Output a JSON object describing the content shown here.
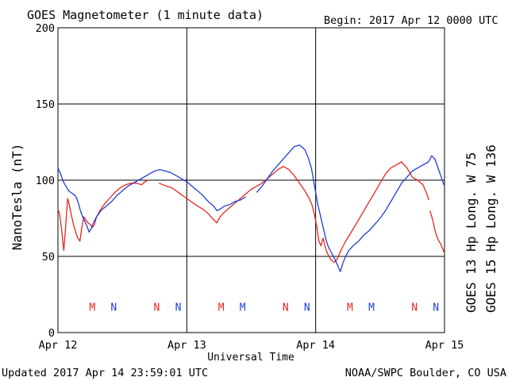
{
  "chart_data": {
    "type": "line",
    "title": "GOES Magnetometer (1 minute data)",
    "begin_label": "Begin:  2017 Apr 12 0000 UTC",
    "xlabel": "Universal Time",
    "ylabel": "NanoTesla (nT)",
    "ylim": [
      0,
      200
    ],
    "yticks": [
      0,
      50,
      100,
      150,
      200
    ],
    "xlim_hours": [
      0,
      72
    ],
    "xticks": [
      {
        "hour": 0,
        "label": "Apr 12"
      },
      {
        "hour": 24,
        "label": "Apr 13"
      },
      {
        "hour": 48,
        "label": "Apr 14"
      },
      {
        "hour": 72,
        "label": "Apr 15"
      }
    ],
    "grid": true,
    "footer_left": "Updated 2017 Apr 14 23:59:01 UTC",
    "footer_right": "NOAA/SWPC Boulder, CO USA",
    "series": [
      {
        "name": "GOES 13 Hp  Long. W 75",
        "color": "#e8251f",
        "segments": [
          [
            [
              0,
              81
            ],
            [
              0.3,
              78
            ],
            [
              0.6,
              70
            ],
            [
              0.9,
              60
            ],
            [
              1.1,
              54
            ],
            [
              1.4,
              68
            ],
            [
              1.8,
              88
            ],
            [
              2.1,
              84
            ],
            [
              2.5,
              77
            ],
            [
              2.9,
              71
            ],
            [
              3.3,
              66
            ],
            [
              3.7,
              62
            ],
            [
              4.1,
              60
            ],
            [
              4.4,
              68
            ],
            [
              4.8,
              76
            ],
            [
              5.2,
              74
            ],
            [
              5.6,
              72
            ],
            [
              6.0,
              71
            ],
            [
              6.4,
              69
            ],
            [
              6.8,
              71
            ],
            [
              7.2,
              76
            ],
            [
              7.8,
              80
            ],
            [
              8.6,
              84
            ],
            [
              9.6,
              88
            ],
            [
              10.6,
              92
            ],
            [
              11.6,
              95
            ],
            [
              12.6,
              97
            ],
            [
              13.6,
              98
            ],
            [
              14.6,
              98
            ],
            [
              15.6,
              97
            ],
            [
              16.2,
              99
            ],
            [
              16.8,
              100
            ]
          ],
          [
            [
              18.8,
              98
            ],
            [
              19.6,
              97
            ],
            [
              20.4,
              96
            ],
            [
              21.2,
              95
            ],
            [
              22.0,
              93
            ],
            [
              22.8,
              91
            ],
            [
              23.6,
              89
            ],
            [
              24.4,
              87
            ],
            [
              25.2,
              85
            ],
            [
              26,
              83
            ],
            [
              27,
              81
            ],
            [
              28,
              78
            ],
            [
              29,
              74
            ],
            [
              29.6,
              72
            ],
            [
              30.2,
              76
            ],
            [
              31,
              79
            ],
            [
              32,
              82
            ],
            [
              33,
              85
            ],
            [
              34,
              88
            ],
            [
              35,
              91
            ],
            [
              36,
              94
            ],
            [
              37,
              96
            ],
            [
              38,
              98
            ],
            [
              39,
              101
            ],
            [
              40,
              104
            ],
            [
              41,
              107
            ],
            [
              42,
              109
            ],
            [
              43,
              107
            ],
            [
              44,
              103
            ],
            [
              45,
              98
            ],
            [
              46,
              93
            ],
            [
              46.8,
              88
            ],
            [
              47.4,
              83
            ],
            [
              47.8,
              77
            ],
            [
              48.2,
              70
            ],
            [
              48.6,
              60
            ],
            [
              49.0,
              57
            ],
            [
              49.4,
              62
            ],
            [
              49.8,
              56
            ],
            [
              50.2,
              52
            ],
            [
              50.8,
              48
            ],
            [
              51.4,
              46
            ],
            [
              52.0,
              48
            ],
            [
              52.6,
              53
            ],
            [
              53.0,
              56
            ],
            [
              53.6,
              60
            ],
            [
              54.3,
              64
            ],
            [
              55,
              68
            ],
            [
              56,
              74
            ],
            [
              57,
              80
            ],
            [
              58,
              86
            ],
            [
              59,
              92
            ],
            [
              60,
              98
            ],
            [
              61,
              104
            ],
            [
              62,
              108
            ],
            [
              63,
              110
            ],
            [
              64,
              112
            ],
            [
              65,
              108
            ],
            [
              66,
              102
            ],
            [
              67,
              100
            ],
            [
              68,
              97
            ],
            [
              68.6,
              92
            ],
            [
              69.1,
              87
            ]
          ],
          [
            [
              69.3,
              80
            ],
            [
              69.8,
              74
            ],
            [
              70.3,
              66
            ],
            [
              70.8,
              61
            ],
            [
              71.3,
              58
            ],
            [
              72,
              52
            ]
          ]
        ]
      },
      {
        "name": "GOES 15 Hp  Long. W 136",
        "color": "#1f3fd6",
        "segments": [
          [
            [
              0,
              108
            ],
            [
              0.5,
              104
            ],
            [
              1,
              99
            ],
            [
              1.5,
              96
            ],
            [
              2.0,
              93
            ],
            [
              2.4,
              92
            ],
            [
              2.8,
              91
            ],
            [
              3.2,
              90
            ],
            [
              3.5,
              88
            ],
            [
              3.8,
              85
            ],
            [
              4.2,
              80
            ],
            [
              4.6,
              76
            ],
            [
              5.0,
              73
            ],
            [
              5.4,
              70
            ],
            [
              5.8,
              66
            ],
            [
              6.2,
              68
            ],
            [
              6.6,
              72
            ],
            [
              7.2,
              76
            ],
            [
              8,
              80
            ],
            [
              9,
              83
            ],
            [
              10,
              86
            ],
            [
              11,
              90
            ],
            [
              12,
              93
            ],
            [
              13,
              96
            ],
            [
              14,
              98
            ],
            [
              15,
              100
            ],
            [
              16,
              102
            ],
            [
              17,
              104
            ],
            [
              18,
              106
            ],
            [
              19,
              107
            ],
            [
              20,
              106
            ],
            [
              21,
              105
            ],
            [
              22,
              103
            ],
            [
              23,
              101
            ],
            [
              24,
              99
            ],
            [
              25,
              96
            ],
            [
              26,
              93
            ],
            [
              27,
              90
            ],
            [
              28,
              86
            ],
            [
              29,
              83
            ],
            [
              29.6,
              80
            ],
            [
              30.2,
              81
            ],
            [
              31,
              83
            ],
            [
              32,
              84
            ],
            [
              33,
              86
            ],
            [
              34,
              87
            ],
            [
              35,
              89
            ]
          ],
          [
            [
              37,
              92
            ],
            [
              38,
              96
            ],
            [
              39,
              101
            ],
            [
              40,
              106
            ],
            [
              41,
              110
            ],
            [
              42,
              114
            ],
            [
              43,
              118
            ],
            [
              44,
              122
            ],
            [
              45,
              123
            ],
            [
              46,
              120
            ],
            [
              46.6,
              115
            ],
            [
              47.2,
              108
            ],
            [
              47.6,
              100
            ],
            [
              48.0,
              92
            ],
            [
              48.4,
              84
            ],
            [
              48.8,
              78
            ],
            [
              49.2,
              72
            ],
            [
              49.6,
              66
            ],
            [
              50.0,
              60
            ],
            [
              50.4,
              56
            ],
            [
              51,
              52
            ],
            [
              51.6,
              48
            ],
            [
              52.1,
              44
            ],
            [
              52.6,
              40
            ],
            [
              53.1,
              46
            ],
            [
              53.6,
              50
            ],
            [
              54.2,
              54
            ],
            [
              55,
              57
            ],
            [
              56,
              60
            ],
            [
              57,
              64
            ],
            [
              58,
              67
            ],
            [
              59,
              71
            ],
            [
              60,
              75
            ],
            [
              61,
              80
            ],
            [
              62,
              86
            ],
            [
              63,
              92
            ],
            [
              64,
              98
            ],
            [
              65,
              102
            ],
            [
              66,
              106
            ],
            [
              67,
              108
            ],
            [
              68,
              110
            ],
            [
              69,
              112
            ],
            [
              69.6,
              116
            ],
            [
              70.2,
              114
            ],
            [
              70.8,
              108
            ],
            [
              71.4,
              102
            ],
            [
              72,
              96
            ]
          ]
        ]
      }
    ],
    "markers": [
      {
        "hour": 6.4,
        "label": "M",
        "series": 0
      },
      {
        "hour": 10.4,
        "label": "N",
        "series": 1
      },
      {
        "hour": 18.4,
        "label": "N",
        "series": 0
      },
      {
        "hour": 22.4,
        "label": "N",
        "series": 1
      },
      {
        "hour": 30.4,
        "label": "M",
        "series": 0
      },
      {
        "hour": 34.4,
        "label": "M",
        "series": 1
      },
      {
        "hour": 42.4,
        "label": "N",
        "series": 0
      },
      {
        "hour": 46.4,
        "label": "N",
        "series": 1
      },
      {
        "hour": 54.4,
        "label": "M",
        "series": 0
      },
      {
        "hour": 58.4,
        "label": "M",
        "series": 1
      },
      {
        "hour": 66.4,
        "label": "N",
        "series": 0
      },
      {
        "hour": 70.4,
        "label": "N",
        "series": 1
      }
    ],
    "marker_value": 17
  }
}
